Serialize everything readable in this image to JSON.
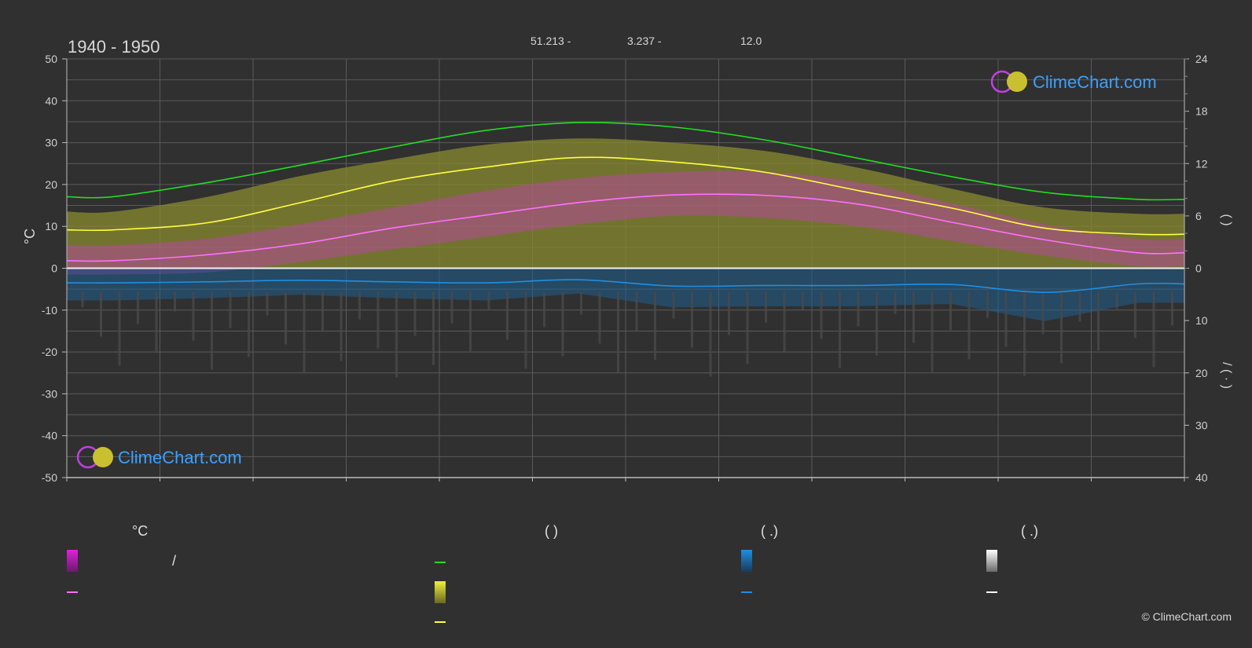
{
  "header": {
    "period": "1940 - 1950",
    "latitude": "51.213 -",
    "longitude": "3.237 -",
    "elevation": "12.0"
  },
  "brand": {
    "logo_text": "ClimeChart.com",
    "copyright": "© ClimeChart.com"
  },
  "axes": {
    "left_label": "°C",
    "right_upper_label": "(      )",
    "right_lower_label": "/       (  ·  )"
  },
  "legend": {
    "temperature_header": "°C",
    "sunshine_header": "(            )",
    "rain_header": "(    .)",
    "snow_header": "(    .)",
    "temp_range_label": "/"
  },
  "colors": {
    "temp_range": "#e020e0",
    "mean_temp": "#ff70ff",
    "daylight": "#22dd22",
    "sunshine_band": "#c8c820",
    "sunshine_line": "#ffff40",
    "rain": "#1f8fe0",
    "snow": "#ffffff"
  },
  "chart_data": {
    "type": "line",
    "x": [
      1,
      2,
      3,
      4,
      5,
      6,
      7,
      8,
      9,
      10,
      11,
      12
    ],
    "ylim": [
      -50,
      50
    ],
    "y_ticks": [
      50,
      40,
      30,
      20,
      10,
      0,
      -10,
      -20,
      -30,
      -40,
      -50
    ],
    "y2_upper_ticks": [
      24,
      18,
      12,
      6,
      0
    ],
    "y2_lower_ticks": [
      0,
      10,
      20,
      30,
      40
    ],
    "grid": true,
    "series": [
      {
        "key": "daylight",
        "values": [
          8.2,
          9.8,
          11.8,
          13.9,
          15.8,
          16.7,
          16.2,
          14.7,
          12.6,
          10.5,
          8.7,
          7.9
        ]
      },
      {
        "key": "sunshine",
        "values": [
          4.4,
          5.2,
          7.5,
          10.0,
          11.6,
          12.7,
          12.2,
          11.0,
          8.9,
          6.9,
          4.6,
          3.9
        ]
      },
      {
        "key": "mean_temp",
        "values": [
          1.8,
          3.2,
          5.8,
          9.6,
          12.7,
          15.7,
          17.5,
          17.4,
          15.3,
          11.0,
          6.8,
          3.7
        ]
      },
      {
        "key": "rain",
        "values": [
          2.8,
          2.6,
          2.3,
          2.6,
          2.8,
          2.2,
          3.4,
          3.3,
          3.3,
          3.1,
          4.6,
          3.0
        ]
      }
    ],
    "temp_max": [
      5.5,
      7.0,
      10.5,
      14.5,
      18.5,
      21.5,
      23.0,
      23.0,
      20.5,
      15.5,
      10.5,
      7.0
    ],
    "temp_min": [
      -1.5,
      -1.0,
      1.5,
      4.5,
      7.5,
      10.5,
      12.5,
      12.0,
      10.0,
      6.5,
      3.0,
      0.5
    ],
    "daylight_band_top": [
      13.5,
      17.0,
      22.0,
      26.0,
      29.5,
      31.0,
      30.0,
      28.0,
      24.0,
      19.0,
      14.5,
      13.0
    ]
  }
}
